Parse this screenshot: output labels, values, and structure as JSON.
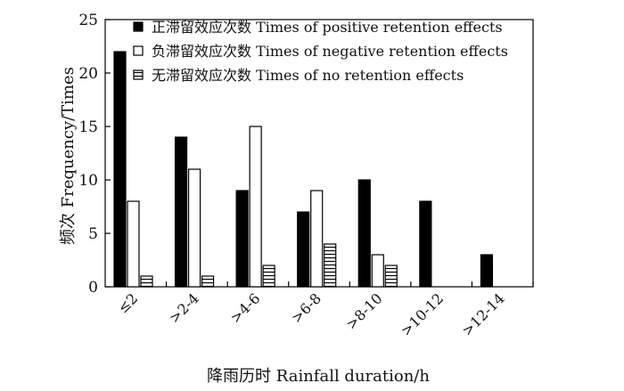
{
  "chart_data": {
    "type": "bar",
    "title": "",
    "xlabel": "降雨历时 Rainfall duration/h",
    "ylabel": "频次 Frequency/Times",
    "ylim": [
      0,
      25
    ],
    "yticks": [
      0,
      5,
      10,
      15,
      20,
      25
    ],
    "categories": [
      "≤2",
      ">2-4",
      ">4-6",
      ">6-8",
      ">8-10",
      ">10-12",
      ">12-14"
    ],
    "series": [
      {
        "name": "正滞留效应次数 Times of positive retention effects",
        "pattern": "solid",
        "color": "#000000",
        "values": [
          22,
          14,
          9,
          7,
          10,
          8,
          3
        ]
      },
      {
        "name": "负滞留效应次数 Times of negative retention effects",
        "pattern": "hollow",
        "color": "#ffffff",
        "values": [
          8,
          11,
          15,
          9,
          3,
          0,
          0
        ]
      },
      {
        "name": "无滞留效应次数 Times of no retention effects",
        "pattern": "hatched",
        "color": "#ffffff",
        "values": [
          1,
          1,
          2,
          4,
          2,
          0,
          0
        ]
      }
    ],
    "legend_position": "top-right"
  }
}
